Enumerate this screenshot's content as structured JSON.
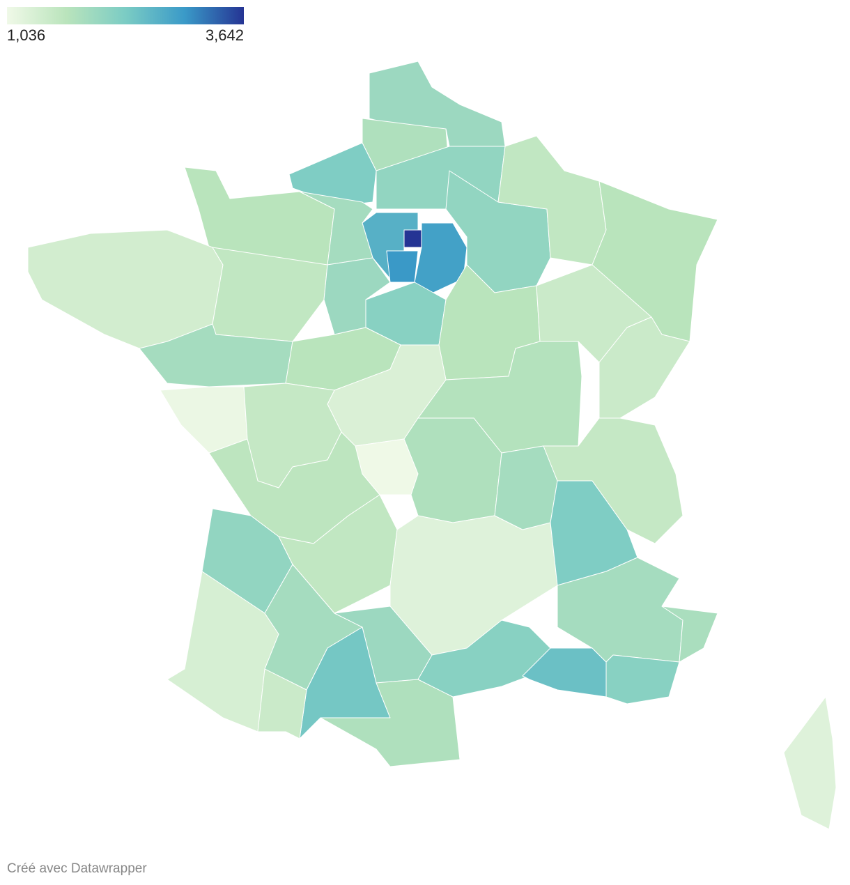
{
  "chart_data": {
    "type": "choropleth",
    "legend": {
      "min": {
        "value": 1036,
        "label": "1,036"
      },
      "max": {
        "value": 3642,
        "label": "3,642"
      }
    },
    "colors": [
      "#f0f9e8",
      "#bae4bc",
      "#7bccc4",
      "#3a9ac8",
      "#253494"
    ],
    "values": [
      2000,
      1800,
      2300,
      2100,
      2700,
      3642,
      2900,
      3000,
      2100,
      1600,
      1700,
      1700,
      1900,
      1400,
      1600,
      1900,
      1100,
      2000,
      2200,
      1700,
      1500,
      1500,
      1700,
      1300,
      1750,
      1550,
      1050,
      1650,
      2100,
      1600,
      1800,
      1250,
      1900,
      1550,
      2300,
      1350,
      1900,
      2000,
      2400,
      1500,
      1800,
      2200,
      2500,
      1900,
      1850,
      2200,
      1250
    ],
    "credit": "Créé avec Datawrapper"
  }
}
